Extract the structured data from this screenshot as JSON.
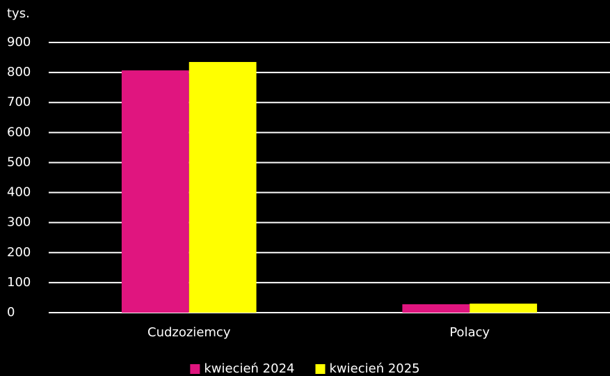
{
  "chart_data": {
    "type": "bar",
    "ylabel": "tys.",
    "categories": [
      "Cudzoziemcy",
      "Polacy"
    ],
    "series": [
      {
        "name": "kwiecień 2024",
        "color": "#e0157f",
        "values": [
          807,
          28
        ]
      },
      {
        "name": "kwiecień 2025",
        "color": "#ffff00",
        "values": [
          835,
          30
        ]
      }
    ],
    "ylim": [
      0,
      900
    ],
    "yticks": [
      0,
      100,
      200,
      300,
      400,
      500,
      600,
      700,
      800,
      900
    ],
    "grid": true,
    "legend": "bottom"
  }
}
